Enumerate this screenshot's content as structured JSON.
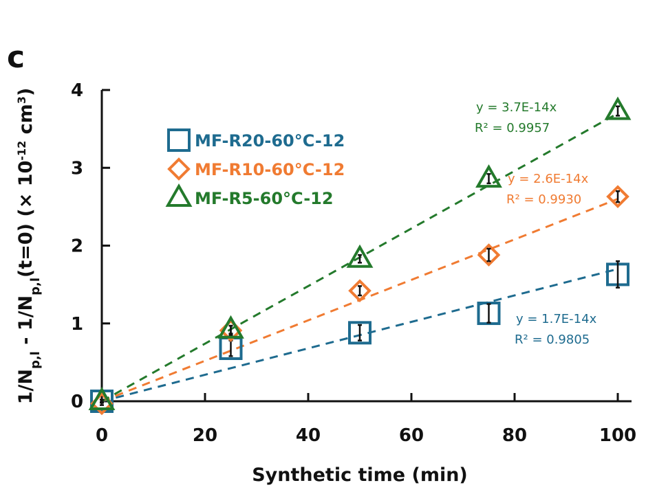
{
  "panel_label": "c",
  "chart_data": {
    "type": "scatter",
    "title": "",
    "xlabel": "Synthetic time (min)",
    "ylabel": "1/N_p,l - 1/N_p,l(t=0) (× 10^-12 cm^3)",
    "ylabel_parts": {
      "main": "1/N",
      "sub1": "p,l",
      "mid": " - 1/N",
      "sub2": "p,l",
      "tail": "(t=0) (× 10",
      "exp": "-12",
      "unit": " cm",
      "unit_exp": "3",
      "close": ")"
    },
    "xlim": [
      0,
      100
    ],
    "ylim": [
      0,
      4
    ],
    "xticks": [
      "0",
      "20",
      "40",
      "60",
      "80",
      "100"
    ],
    "yticks": [
      "0",
      "1",
      "2",
      "3",
      "4"
    ],
    "grid": false,
    "legend_placement": "top-left",
    "series": [
      {
        "name": "MF-R20-60°C-12",
        "color": "#1e6b8f",
        "marker": "square",
        "x": [
          0,
          25,
          50,
          75,
          100
        ],
        "y": [
          0,
          0.68,
          0.88,
          1.13,
          1.63
        ],
        "err": [
          0.02,
          0.1,
          0.1,
          0.12,
          0.17
        ],
        "fit": {
          "slope": 0.017,
          "equation": "y = 1.7E-14x",
          "r2": "R² = 0.9805"
        }
      },
      {
        "name": "MF-R10-60°C-12",
        "color": "#f07b32",
        "marker": "diamond",
        "x": [
          0,
          25,
          50,
          75,
          100
        ],
        "y": [
          -0.03,
          0.91,
          1.42,
          1.88,
          2.63
        ],
        "err": [
          0.02,
          0.06,
          0.06,
          0.08,
          0.07
        ],
        "fit": {
          "slope": 0.026,
          "equation": "y = 2.6E-14x",
          "r2": "R² = 0.9930"
        }
      },
      {
        "name": "MF-R5-60°C-12",
        "color": "#247a2c",
        "marker": "triangle",
        "x": [
          0,
          25,
          50,
          75,
          100
        ],
        "y": [
          0,
          0.92,
          1.83,
          2.86,
          3.73
        ],
        "err": [
          0.02,
          0.05,
          0.05,
          0.06,
          0.06
        ],
        "fit": {
          "slope": 0.037,
          "equation": "y = 3.7E-14x",
          "r2": "R² = 0.9957"
        }
      }
    ]
  }
}
